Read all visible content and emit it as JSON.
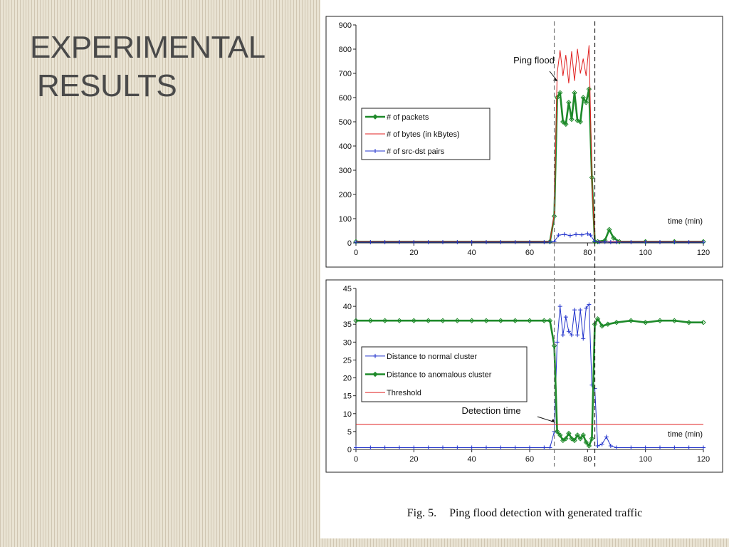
{
  "slide": {
    "title_line1": "EXPERIMENTAL",
    "title_line2": "RESULTS"
  },
  "figure": {
    "caption_label": "Fig. 5.",
    "caption_text": "Ping flood detection with generated traffic"
  },
  "colors": {
    "packets": "#1e8a2a",
    "bytes": "#e02020",
    "pairs": "#2233cc",
    "normal": "#2233cc",
    "anomalous": "#1e8a2a",
    "threshold": "#e02020"
  },
  "chart_data": [
    {
      "type": "line",
      "xlabel": "time (min)",
      "xlim": [
        0,
        120
      ],
      "ylim": [
        0,
        900
      ],
      "xticks": [
        0,
        20,
        40,
        60,
        80,
        100,
        120
      ],
      "yticks": [
        0,
        100,
        200,
        300,
        400,
        500,
        600,
        700,
        800,
        900
      ],
      "legend_position": "left",
      "annotation": {
        "text": "Ping flood",
        "x": 69,
        "y": 680
      },
      "vlines": [
        68.5,
        82.5
      ],
      "series": [
        {
          "name": "# of packets",
          "color": "packets",
          "marker": "diamond",
          "x": [
            0,
            67,
            68.5,
            69.5,
            70.5,
            71.5,
            72.5,
            73.5,
            74.5,
            75.5,
            76.5,
            77.5,
            78.5,
            79.5,
            80.5,
            81.5,
            82.5,
            83.5,
            86,
            87.5,
            89,
            91,
            100,
            110,
            120
          ],
          "y": [
            5,
            5,
            110,
            600,
            620,
            500,
            490,
            580,
            510,
            620,
            505,
            500,
            600,
            580,
            635,
            270,
            5,
            5,
            10,
            55,
            20,
            5,
            5,
            5,
            5
          ]
        },
        {
          "name": "# of bytes (in kBytes)",
          "color": "bytes",
          "marker": "none",
          "x": [
            0,
            67,
            68.5,
            69.5,
            70.5,
            71.5,
            72.5,
            73.5,
            74.5,
            75.5,
            76.5,
            77.5,
            78.5,
            79.5,
            80.5,
            81.5,
            82.5,
            83.5,
            120
          ],
          "y": [
            5,
            5,
            120,
            700,
            795,
            690,
            775,
            660,
            790,
            670,
            800,
            700,
            760,
            690,
            815,
            265,
            5,
            5,
            5
          ]
        },
        {
          "name": "# of src-dst pairs",
          "color": "pairs",
          "marker": "plus",
          "x": [
            0,
            5,
            10,
            15,
            20,
            25,
            30,
            35,
            40,
            45,
            50,
            55,
            60,
            65,
            67,
            68.5,
            70,
            72,
            74,
            76,
            78,
            80,
            81,
            82.5,
            84,
            86,
            88,
            90,
            95,
            100,
            105,
            110,
            115,
            120
          ],
          "y": [
            3,
            3,
            3,
            3,
            3,
            3,
            3,
            3,
            3,
            3,
            3,
            3,
            3,
            3,
            3,
            5,
            32,
            35,
            30,
            35,
            33,
            38,
            32,
            5,
            3,
            4,
            3,
            3,
            3,
            3,
            3,
            3,
            3,
            3
          ]
        }
      ]
    },
    {
      "type": "line",
      "xlabel": "time (min)",
      "xlim": [
        0,
        120
      ],
      "ylim": [
        0,
        45
      ],
      "xticks": [
        0,
        20,
        40,
        60,
        80,
        100,
        120
      ],
      "yticks": [
        0,
        5,
        10,
        15,
        20,
        25,
        30,
        35,
        40,
        45
      ],
      "legend_position": "left",
      "annotation": {
        "text": "Detection time",
        "x": 69,
        "y": 7
      },
      "vlines": [
        68.5,
        82.5
      ],
      "series": [
        {
          "name": "Distance to normal cluster",
          "color": "normal",
          "marker": "plus",
          "x": [
            0,
            5,
            10,
            15,
            20,
            25,
            30,
            35,
            40,
            45,
            50,
            55,
            60,
            65,
            67,
            68.5,
            69.5,
            70.5,
            71.5,
            72.5,
            73.5,
            74.5,
            75.5,
            76.5,
            77.5,
            78.5,
            79.5,
            80.5,
            81.5,
            82.5,
            83.5,
            85,
            86.5,
            88,
            90,
            95,
            100,
            105,
            110,
            115,
            120
          ],
          "y": [
            0.5,
            0.5,
            0.5,
            0.5,
            0.5,
            0.5,
            0.5,
            0.5,
            0.5,
            0.5,
            0.5,
            0.5,
            0.5,
            0.5,
            0.5,
            5,
            30,
            40,
            32,
            37,
            33,
            32,
            39,
            32,
            39,
            31,
            39.5,
            40.5,
            18,
            17,
            1,
            1.5,
            3.5,
            1,
            0.5,
            0.5,
            0.5,
            0.5,
            0.5,
            0.5,
            0.5
          ]
        },
        {
          "name": "Distance to anomalous cluster",
          "color": "anomalous",
          "marker": "diamond",
          "x": [
            0,
            5,
            10,
            15,
            20,
            25,
            30,
            35,
            40,
            45,
            50,
            55,
            60,
            65,
            67,
            68.5,
            69.5,
            70.5,
            71.5,
            72.5,
            73.5,
            74.5,
            75.5,
            76.5,
            77.5,
            78.5,
            79.5,
            80.5,
            81.5,
            82.5,
            83.5,
            85,
            87,
            90,
            95,
            100,
            105,
            110,
            115,
            120
          ],
          "y": [
            36,
            36,
            36,
            36,
            36,
            36,
            36,
            36,
            36,
            36,
            36,
            36,
            36,
            36,
            36,
            29,
            5,
            4,
            2.5,
            3,
            4.5,
            3,
            2.5,
            4,
            3,
            4,
            2,
            1,
            3,
            35,
            36.5,
            34.5,
            35,
            35.5,
            36,
            35.5,
            36,
            36,
            35.5,
            35.5
          ]
        },
        {
          "name": "Threshold",
          "color": "threshold",
          "marker": "none",
          "x": [
            0,
            120
          ],
          "y": [
            7,
            7
          ]
        }
      ]
    }
  ]
}
